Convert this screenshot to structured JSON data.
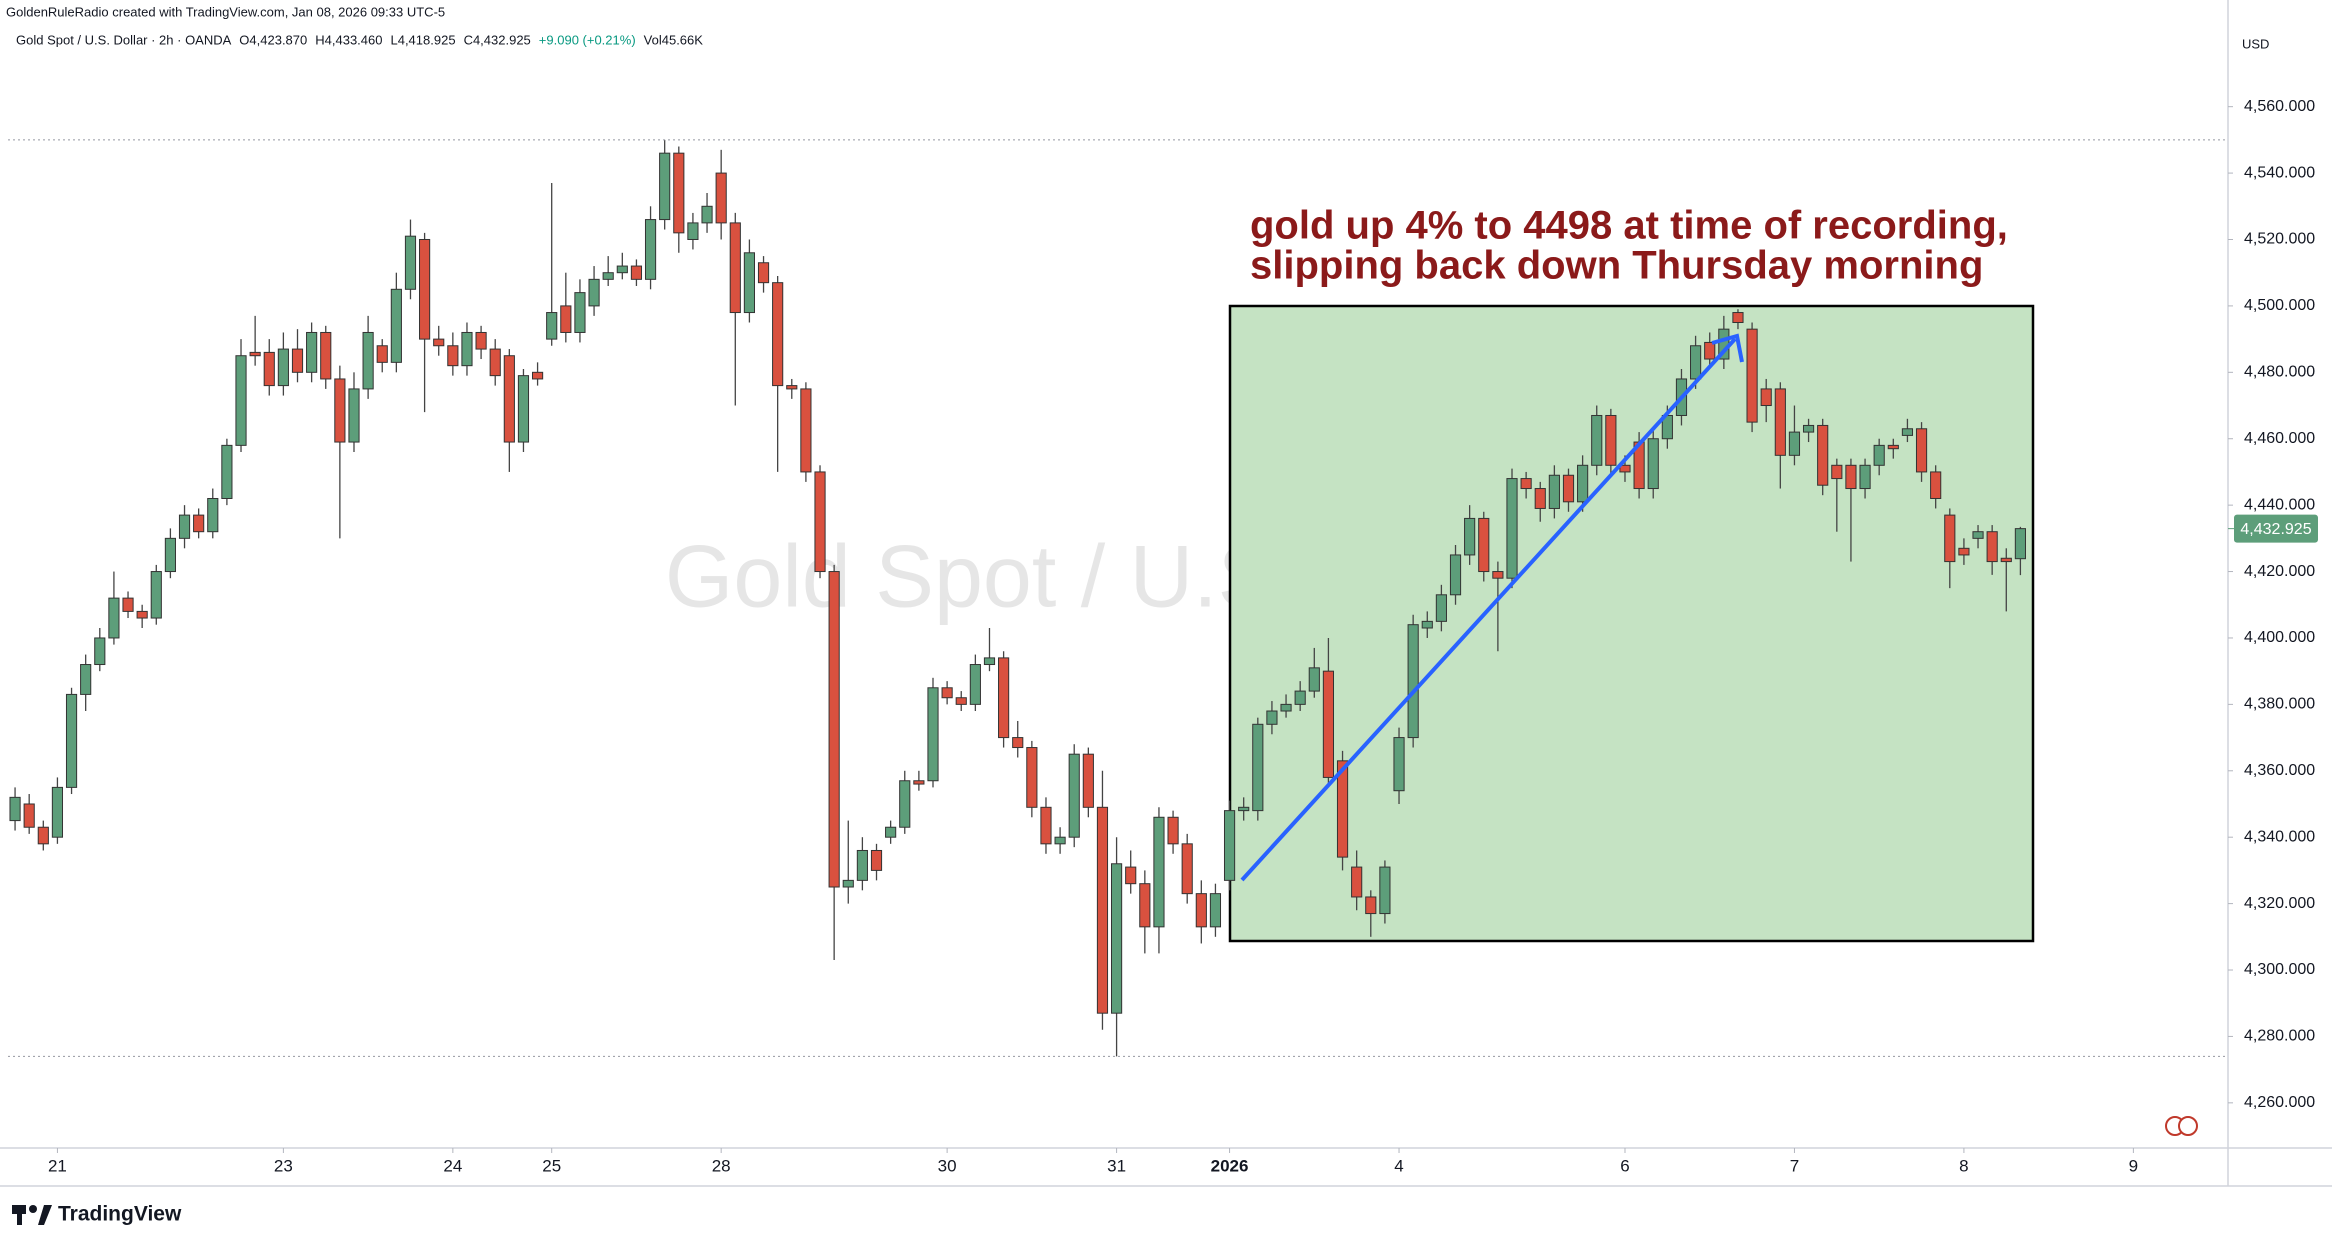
{
  "chart_data": {
    "type": "candlestick",
    "credit": "GoldenRuleRadio created with TradingView.com, Jan 08, 2026 09:33 UTC-5",
    "legend": [
      "Gold Spot / U.S. Dollar · 2h · OANDA",
      "O4,423.870",
      "H4,433.460",
      "L4,418.925",
      "C4,432.925",
      "+9.090 (+0.21%)",
      "Vol45.66K"
    ],
    "watermark": "Gold Spot / U.S. Dollar",
    "currency": "USD",
    "brand": "TradingView",
    "annotation": [
      "gold up 4% to 4498 at time of recording,",
      "slipping back down Thursday morning"
    ],
    "last_label": "4,432.925",
    "up_color": "#5d9e7a",
    "down_color": "#d9513f",
    "grid": false,
    "xlim": [
      -0.5,
      156.7
    ],
    "xticks": [
      {
        "value": 3,
        "label": "21"
      },
      {
        "value": 19,
        "label": "23"
      },
      {
        "value": 31,
        "label": "24"
      },
      {
        "value": 38,
        "label": "25"
      },
      {
        "value": 50,
        "label": "28"
      },
      {
        "value": 66,
        "label": "30"
      },
      {
        "value": 78,
        "label": "31"
      },
      {
        "value": 86,
        "label": "2026"
      },
      {
        "value": 98,
        "label": "4"
      },
      {
        "value": 114,
        "label": "6"
      },
      {
        "value": 126,
        "label": "7"
      },
      {
        "value": 138,
        "label": "8"
      },
      {
        "value": 150,
        "label": "9"
      }
    ],
    "ylim": [
      4246.4,
      4585.8
    ],
    "yticks": [
      {
        "value": 4260,
        "label": "4,260.000"
      },
      {
        "value": 4280,
        "label": "4,280.000"
      },
      {
        "value": 4300,
        "label": "4,300.000"
      },
      {
        "value": 4320,
        "label": "4,320.000"
      },
      {
        "value": 4340,
        "label": "4,340.000"
      },
      {
        "value": 4360,
        "label": "4,360.000"
      },
      {
        "value": 4380,
        "label": "4,380.000"
      },
      {
        "value": 4400,
        "label": "4,400.000"
      },
      {
        "value": 4420,
        "label": "4,420.000"
      },
      {
        "value": 4440,
        "label": "4,440.000"
      },
      {
        "value": 4460,
        "label": "4,460.000"
      },
      {
        "value": 4480,
        "label": "4,480.000"
      },
      {
        "value": 4500,
        "label": "4,500.000"
      },
      {
        "value": 4520,
        "label": "4,520.000"
      },
      {
        "value": 4540,
        "label": "4,540.000"
      },
      {
        "value": 4560,
        "label": "4,560.000"
      }
    ],
    "open": [
      4345,
      4350,
      4343,
      4340,
      4355,
      4383,
      4392,
      4400,
      4412,
      4408,
      4406,
      4420,
      4430,
      4437,
      4432,
      4442,
      4458,
      4486,
      4486,
      4476,
      4487,
      4480,
      4492,
      4478,
      4459,
      4475,
      4488,
      4483,
      4505,
      4520,
      4490,
      4488,
      4482,
      4492,
      4487,
      4485,
      4459,
      4480,
      4490,
      4500,
      4492,
      4500,
      4508,
      4510,
      4512,
      4508,
      4526,
      4546,
      4520,
      4525,
      4540,
      4525,
      4498,
      4513,
      4507,
      4476,
      4475,
      4450,
      4420,
      4325,
      4327,
      4336,
      4340,
      4343,
      4357,
      4357,
      4385,
      4382,
      4380,
      4392,
      4394,
      4370,
      4367,
      4349,
      4338,
      4340,
      4365,
      4349,
      4287,
      4331,
      4326,
      4313,
      4346,
      4338,
      4323,
      4313,
      4327,
      4348,
      4348,
      4374,
      4378,
      4380,
      4384,
      4390,
      4363,
      4331,
      4322,
      4317,
      4354,
      4370,
      4403,
      4405,
      4413,
      4425,
      4436,
      4420,
      4418,
      4448,
      4445,
      4439,
      4449,
      4441,
      4452,
      4467,
      4452,
      4459,
      4445,
      4460,
      4467,
      4478,
      4489,
      4484,
      4498,
      4493,
      4475,
      4475,
      4455,
      4462,
      4464,
      4452,
      4452,
      4445,
      4452,
      4458,
      4461,
      4463,
      4450,
      4437,
      4427,
      4430,
      4432,
      4424,
      4423.87
    ],
    "high": [
      4355,
      4353,
      4345,
      4358,
      4385,
      4395,
      4403,
      4420,
      4414,
      4410,
      4422,
      4433,
      4440,
      4439,
      4445,
      4460,
      4490,
      4497,
      4490,
      4492,
      4493,
      4495,
      4494,
      4482,
      4480,
      4497,
      4490,
      4510,
      4526,
      4522,
      4494,
      4492,
      4495,
      4494,
      4490,
      4487,
      4481,
      4483,
      4537,
      4510,
      4508,
      4512,
      4515,
      4516,
      4514,
      4530,
      4550,
      4548,
      4528,
      4534,
      4547,
      4528,
      4520,
      4515,
      4509,
      4478,
      4477,
      4452,
      4422,
      4345,
      4340,
      4338,
      4345,
      4360,
      4360,
      4388,
      4387,
      4384,
      4395,
      4403,
      4396,
      4375,
      4369,
      4352,
      4343,
      4368,
      4367,
      4360,
      4340,
      4336,
      4330,
      4349,
      4348,
      4341,
      4327,
      4326,
      4351,
      4352,
      4376,
      4381,
      4383,
      4387,
      4397,
      4400,
      4366,
      4336,
      4324,
      4333,
      4373,
      4407,
      4408,
      4416,
      4428,
      4440,
      4438,
      4423,
      4451,
      4450,
      4447,
      4452,
      4451,
      4455,
      4470,
      4469,
      4455,
      4462,
      4463,
      4470,
      4481,
      4491,
      4492,
      4497,
      4499,
      4495,
      4478,
      4477,
      4470,
      4466,
      4466,
      4454,
      4454,
      4454,
      4460,
      4460,
      4466,
      4465,
      4452,
      4439,
      4430,
      4434,
      4434,
      4427,
      4433.46
    ],
    "low": [
      4342,
      4341,
      4336,
      4338,
      4353,
      4378,
      4390,
      4398,
      4406,
      4403,
      4404,
      4418,
      4427,
      4430,
      4430,
      4440,
      4456,
      4482,
      4473,
      4473,
      4477,
      4477,
      4475,
      4430,
      4456,
      4472,
      4480,
      4480,
      4502,
      4468,
      4485,
      4479,
      4479,
      4484,
      4476,
      4450,
      4456,
      4476,
      4488,
      4489,
      4489,
      4497,
      4506,
      4508,
      4506,
      4505,
      4523,
      4516,
      4517,
      4522,
      4520,
      4470,
      4495,
      4504,
      4450,
      4472,
      4447,
      4418,
      4303,
      4320,
      4324,
      4327,
      4338,
      4341,
      4354,
      4355,
      4380,
      4378,
      4378,
      4390,
      4367,
      4364,
      4346,
      4335,
      4335,
      4337,
      4346,
      4282,
      4274,
      4323,
      4305,
      4305,
      4335,
      4320,
      4308,
      4310,
      4324,
      4345,
      4345,
      4371,
      4376,
      4378,
      4382,
      4355,
      4330,
      4318,
      4310,
      4314,
      4350,
      4367,
      4400,
      4402,
      4410,
      4422,
      4417,
      4396,
      4415,
      4442,
      4435,
      4436,
      4438,
      4438,
      4449,
      4449,
      4447,
      4442,
      4442,
      4457,
      4464,
      4475,
      4481,
      4481,
      4493,
      4462,
      4465,
      4445,
      4452,
      4459,
      4443,
      4432,
      4423,
      4442,
      4449,
      4454,
      4459,
      4447,
      4439,
      4415,
      4422,
      4427,
      4419,
      4408,
      4418.925
    ],
    "close": [
      4352,
      4343,
      4338,
      4355,
      4383,
      4392,
      4400,
      4412,
      4408,
      4406,
      4420,
      4430,
      4437,
      4432,
      4442,
      4458,
      4485,
      4485,
      4476,
      4487,
      4480,
      4492,
      4478,
      4459,
      4475,
      4492,
      4483,
      4505,
      4521,
      4490,
      4488,
      4482,
      4492,
      4487,
      4479,
      4459,
      4479,
      4478,
      4498,
      4492,
      4504,
      4508,
      4510,
      4512,
      4508,
      4526,
      4546,
      4522,
      4525,
      4530,
      4525,
      4498,
      4516,
      4507,
      4476,
      4475,
      4450,
      4420,
      4325,
      4327,
      4336,
      4330,
      4343,
      4357,
      4356,
      4385,
      4382,
      4380,
      4392,
      4394,
      4370,
      4367,
      4349,
      4338,
      4340,
      4365,
      4349,
      4287,
      4332,
      4326,
      4313,
      4346,
      4338,
      4323,
      4313,
      4323,
      4348,
      4349,
      4374,
      4378,
      4380,
      4384,
      4391,
      4358,
      4334,
      4322,
      4317,
      4331,
      4370,
      4404,
      4405,
      4413,
      4425,
      4436,
      4420,
      4418,
      4448,
      4445,
      4439,
      4449,
      4441,
      4452,
      4467,
      4452,
      4450,
      4445,
      4460,
      4467,
      4478,
      4488,
      4484,
      4493,
      4495,
      4465,
      4470,
      4455,
      4462,
      4464,
      4446,
      4448,
      4445,
      4452,
      4458,
      4457,
      4463,
      4450,
      4442,
      4423,
      4425,
      4432,
      4423,
      4423,
      4432.925
    ]
  }
}
